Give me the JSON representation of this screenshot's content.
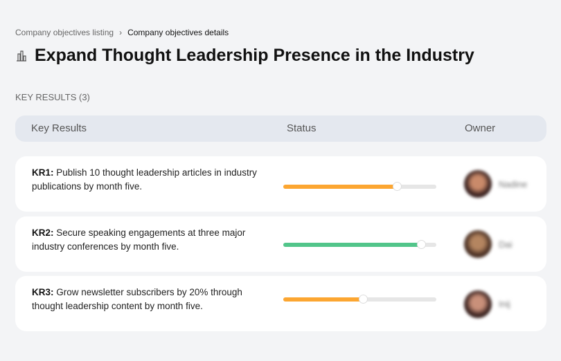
{
  "breadcrumb": {
    "parent": "Company objectives listing",
    "separator": "›",
    "current": "Company objectives details"
  },
  "page": {
    "icon": "building-chart-icon",
    "title": "Expand Thought Leadership Presence in the Industry"
  },
  "section_label": "KEY RESULTS (3)",
  "table": {
    "headers": [
      "Key Results",
      "Status",
      "Owner"
    ]
  },
  "key_results": [
    {
      "code": "KR1:",
      "text": " Publish 10 thought leadership articles in industry publications by month five.",
      "progress": 74,
      "color": "#fca631",
      "owner": "Nadine"
    },
    {
      "code": "KR2:",
      "text": " Secure speaking engagements at three major industry conferences by month five.",
      "progress": 90,
      "color": "#52c58a",
      "owner": "Dai"
    },
    {
      "code": "KR3:",
      "text": " Grow newsletter subscribers by 20% through thought leadership content by month five.",
      "progress": 52,
      "color": "#fca631",
      "owner": "Inij"
    }
  ]
}
